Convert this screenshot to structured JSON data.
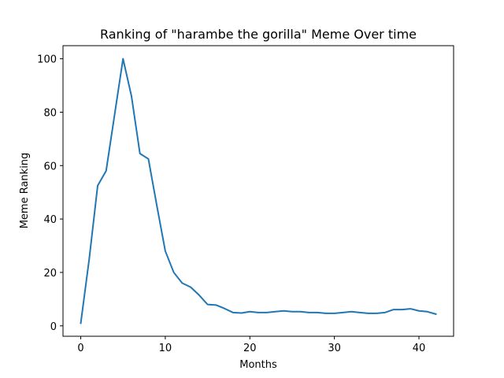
{
  "chart_data": {
    "type": "line",
    "title": "Ranking of \"harambe the gorilla\" Meme Over time",
    "xlabel": "Months",
    "ylabel": "Meme Ranking",
    "xlim": [
      -2.1,
      44.1
    ],
    "ylim": [
      -3.9,
      104.9
    ],
    "xticks": [
      0,
      10,
      20,
      30,
      40
    ],
    "yticks": [
      0,
      20,
      40,
      60,
      80,
      100
    ],
    "grid": false,
    "series": [
      {
        "color": "#1f77b4",
        "x": [
          0,
          1,
          2,
          3,
          4,
          5,
          6,
          7,
          8,
          9,
          10,
          11,
          12,
          13,
          14,
          15,
          16,
          17,
          18,
          19,
          20,
          21,
          22,
          23,
          24,
          25,
          26,
          27,
          28,
          29,
          30,
          31,
          32,
          33,
          34,
          35,
          36,
          37,
          38,
          39,
          40,
          41,
          42
        ],
        "values": [
          1,
          25,
          52.5,
          58,
          79,
          100,
          86,
          64.5,
          62.5,
          45,
          28,
          20,
          16,
          14.5,
          11.5,
          8,
          7.8,
          6.5,
          5,
          4.8,
          5.3,
          5,
          5,
          5.3,
          5.6,
          5.3,
          5.3,
          5,
          5,
          4.7,
          4.7,
          5,
          5.3,
          5,
          4.7,
          4.7,
          5,
          6.1,
          6.1,
          6.4,
          5.6,
          5.3,
          4.4
        ]
      }
    ]
  }
}
